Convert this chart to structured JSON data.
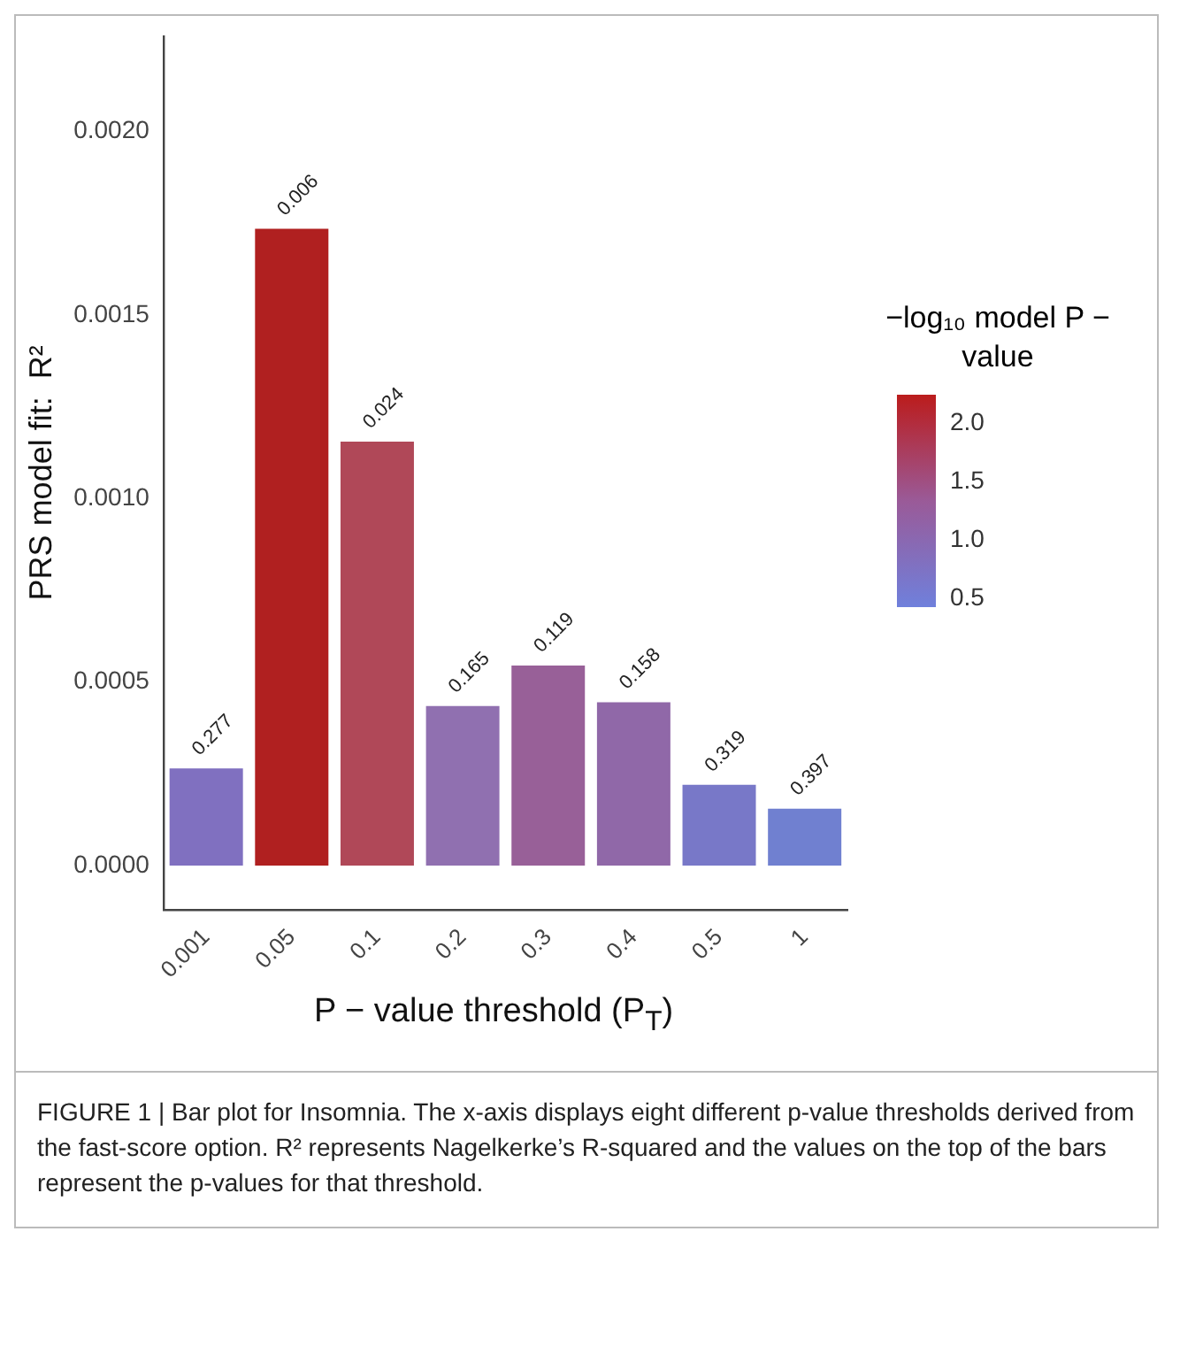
{
  "chart_data": {
    "type": "bar",
    "ylabel": "PRS model fit:  R²",
    "xlabel": "P − value threshold (P$_{T}$)",
    "clabel": "−log₁₀ model P − value",
    "categories": [
      "0.001",
      "0.05",
      "0.1",
      "0.2",
      "0.3",
      "0.4",
      "0.5",
      "1"
    ],
    "values": [
      0.00027,
      0.00174,
      0.00116,
      0.00044,
      0.00055,
      0.00045,
      0.000225,
      0.00016
    ],
    "colors": [
      "#8070c0",
      "#b02020",
      "#b04858",
      "#9070b0",
      "#986098",
      "#9068a8",
      "#7878c8",
      "#7080d0"
    ],
    "ylim": [
      -0.00012,
      0.00226
    ],
    "yticks": [
      {
        "value": 0,
        "label": "0.0000"
      },
      {
        "value": 0.0005,
        "label": "0.0005"
      },
      {
        "value": 0.001,
        "label": "0.0010"
      },
      {
        "value": 0.0015,
        "label": "0.0015"
      },
      {
        "value": 0.002,
        "label": "0.0020"
      }
    ],
    "clim": [
      0.4,
      2.23
    ],
    "cticks": [
      {
        "value": 0.5,
        "label": "0.5"
      },
      {
        "value": 1,
        "label": "1.0"
      },
      {
        "value": 1.5,
        "label": "1.5"
      },
      {
        "value": 2,
        "label": "2.0"
      }
    ],
    "grid": false,
    "legend": false,
    "annotations": [
      {
        "text": "0.277",
        "x": "0.001",
        "y": 0.00027
      },
      {
        "text": "0.006",
        "x": "0.05",
        "y": 0.00174
      },
      {
        "text": "0.024",
        "x": "0.1",
        "y": 0.00116
      },
      {
        "text": "0.165",
        "x": "0.2",
        "y": 0.00044
      },
      {
        "text": "0.119",
        "x": "0.3",
        "y": 0.00055
      },
      {
        "text": "0.158",
        "x": "0.4",
        "y": 0.00045
      },
      {
        "text": "0.319",
        "x": "0.5",
        "y": 0.000225
      },
      {
        "text": "0.397",
        "x": "1",
        "y": 0.00016
      },
      "FIGURE 1 | Bar plot for Insomnia. The x-axis displays eight different p-value thresholds derived from the fast-score option. R² represents Nagelkerke’s R-squared and the values on the top of the bars represent the p-values for that threshold."
    ]
  }
}
